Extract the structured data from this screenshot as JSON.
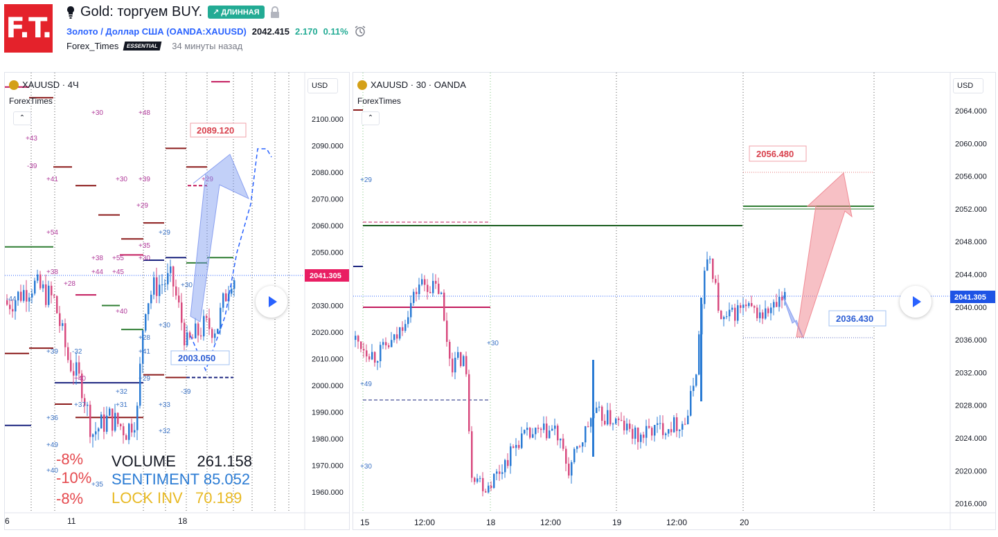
{
  "header": {
    "logo_text": "F.T.",
    "idea_icon": "lightbulb-icon",
    "title": "Gold: торгуем BUY.",
    "badge": "↗ ДЛИННАЯ",
    "lock_icon": "lock-icon",
    "symbol_name": "Золото / Доллар США",
    "symbol_ticker": "(OANDA:XAUUSD)",
    "price": "2042.415",
    "change": "2.170",
    "change_pct": "0.11%",
    "alarm_icon": "alarm-clock-icon",
    "author": "Forex_Times",
    "author_badge": "ESSENTIAL",
    "time_ago": "34 минуты назад"
  },
  "left_chart": {
    "symbol": "XAUUSD · 4Ч",
    "indicator": "ForexTimes",
    "collapse_label": "⌃",
    "currency": "USD",
    "price_ticks": [
      "2100.000",
      "2090.000",
      "2080.000",
      "2070.000",
      "2060.000",
      "2050.000",
      "2040.000",
      "2030.000",
      "2020.000",
      "2010.000",
      "2000.000",
      "1990.000",
      "1980.000",
      "1970.000",
      "1960.000"
    ],
    "current_price": "2041.305",
    "x_ticks": [
      "6",
      "11",
      "18"
    ],
    "target_up": "2089.120",
    "target_down": "2003.050",
    "pct_labels": [
      "-8%",
      "-10%",
      "-8%"
    ],
    "stats": [
      {
        "label": "VOLUME",
        "value": "261.158",
        "color": "#131722"
      },
      {
        "label": "SENTIMENT",
        "value": "85.052",
        "color": "#2a7bd4"
      },
      {
        "label": "LOCK INV",
        "value": "70.189",
        "color": "#e8b923"
      }
    ],
    "level_labels_pink": [
      "+43",
      "-39",
      "+41",
      "+54",
      "+38",
      "+30",
      "+30",
      "+39",
      "+29",
      "+35",
      "+48",
      "+38",
      "+44",
      "+55",
      "+45",
      "+30",
      "+28",
      "+40",
      "+40",
      "+29"
    ],
    "level_labels_blue": [
      "-44",
      "+39",
      "-32",
      "+37",
      "+31",
      "+36",
      "+49",
      "+35",
      "+40",
      "+32",
      "+28",
      "+41",
      "+29",
      "+33",
      "+32",
      "+29",
      "+30",
      "+30",
      "-39"
    ]
  },
  "right_chart": {
    "symbol": "XAUUSD · 30 · OANDA",
    "indicator": "ForexTimes",
    "collapse_label": "⌃",
    "currency": "USD",
    "price_ticks": [
      "2064.000",
      "2060.000",
      "2056.000",
      "2052.000",
      "2048.000",
      "2044.000",
      "2040.000",
      "2036.000",
      "2032.000",
      "2028.000",
      "2024.000",
      "2020.000",
      "2016.000"
    ],
    "current_price": "2041.305",
    "x_ticks": [
      "15",
      "12:00",
      "18",
      "12:00",
      "19",
      "12:00",
      "20"
    ],
    "target_up": "2056.480",
    "target_down": "2036.430",
    "level_labels_blue": [
      "+29",
      "+49",
      "+30",
      "+30"
    ]
  },
  "colors": {
    "up": "#2a7bd4",
    "down": "#d84a7e",
    "darkred": "#8b1a1a",
    "green": "#2e7d32",
    "navy": "#1a237e",
    "magenta": "#c2185b",
    "accent": "#2962ff"
  }
}
